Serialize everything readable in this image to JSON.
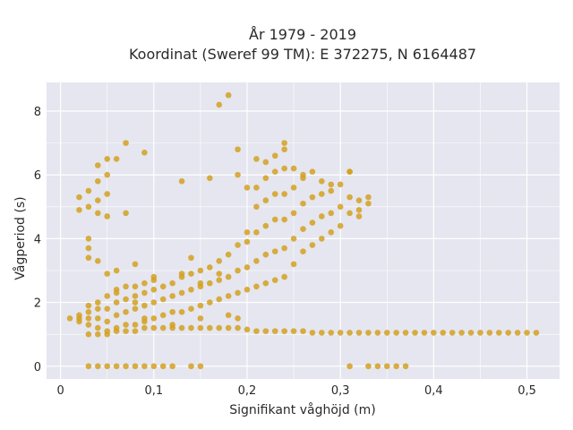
{
  "chart_data": {
    "type": "scatter",
    "title": "År 1979 - 2019",
    "subtitle": "Koordinat (Sweref 99 TM): E 372275, N 6164487",
    "xlabel": "Signifikant våghöjd (m)",
    "ylabel": "Vågperiod (s)",
    "xlim": [
      -0.015,
      0.535
    ],
    "ylim": [
      -0.4,
      8.9
    ],
    "x_ticks": [
      0,
      0.1,
      0.2,
      0.3,
      0.4,
      0.5
    ],
    "x_tick_labels": [
      "0",
      "0,1",
      "0,2",
      "0,3",
      "0,4",
      "0,5"
    ],
    "y_ticks": [
      0,
      2,
      4,
      6,
      8
    ],
    "y_tick_labels": [
      "0",
      "2",
      "4",
      "6",
      "8"
    ],
    "grid": true,
    "colors": {
      "point": "#d4a020",
      "plot_bg": "#e5e6ef",
      "grid": "#ffffff"
    },
    "series": [
      {
        "points": [
          [
            0.01,
            1.5
          ],
          [
            0.02,
            1.4
          ],
          [
            0.02,
            1.5
          ],
          [
            0.02,
            1.6
          ],
          [
            0.03,
            1.3
          ],
          [
            0.03,
            1.5
          ],
          [
            0.03,
            1.7
          ],
          [
            0.03,
            1.9
          ],
          [
            0.04,
            1.2
          ],
          [
            0.04,
            1.5
          ],
          [
            0.04,
            1.8
          ],
          [
            0.04,
            2.0
          ],
          [
            0.05,
            1.1
          ],
          [
            0.05,
            1.4
          ],
          [
            0.05,
            1.8
          ],
          [
            0.05,
            2.2
          ],
          [
            0.06,
            1.2
          ],
          [
            0.06,
            1.6
          ],
          [
            0.06,
            2.0
          ],
          [
            0.06,
            2.4
          ],
          [
            0.07,
            1.3
          ],
          [
            0.07,
            1.7
          ],
          [
            0.07,
            2.1
          ],
          [
            0.07,
            2.5
          ],
          [
            0.08,
            1.3
          ],
          [
            0.08,
            1.8
          ],
          [
            0.08,
            2.2
          ],
          [
            0.08,
            2.5
          ],
          [
            0.09,
            1.4
          ],
          [
            0.09,
            1.9
          ],
          [
            0.09,
            2.3
          ],
          [
            0.09,
            2.6
          ],
          [
            0.1,
            1.5
          ],
          [
            0.1,
            2.0
          ],
          [
            0.1,
            2.4
          ],
          [
            0.1,
            2.7
          ],
          [
            0.11,
            1.6
          ],
          [
            0.11,
            2.1
          ],
          [
            0.11,
            2.5
          ],
          [
            0.12,
            1.7
          ],
          [
            0.12,
            2.2
          ],
          [
            0.12,
            2.6
          ],
          [
            0.13,
            1.7
          ],
          [
            0.13,
            2.3
          ],
          [
            0.13,
            2.8
          ],
          [
            0.14,
            1.8
          ],
          [
            0.14,
            2.4
          ],
          [
            0.14,
            2.9
          ],
          [
            0.15,
            1.9
          ],
          [
            0.15,
            2.5
          ],
          [
            0.15,
            3.0
          ],
          [
            0.16,
            2.0
          ],
          [
            0.16,
            2.6
          ],
          [
            0.16,
            3.1
          ],
          [
            0.17,
            2.1
          ],
          [
            0.17,
            2.7
          ],
          [
            0.17,
            3.3
          ],
          [
            0.18,
            2.2
          ],
          [
            0.18,
            2.8
          ],
          [
            0.18,
            3.5
          ],
          [
            0.19,
            2.3
          ],
          [
            0.19,
            3.0
          ],
          [
            0.19,
            3.8
          ],
          [
            0.2,
            2.4
          ],
          [
            0.2,
            3.1
          ],
          [
            0.2,
            3.9
          ],
          [
            0.2,
            4.2
          ],
          [
            0.21,
            2.5
          ],
          [
            0.21,
            3.3
          ],
          [
            0.21,
            4.2
          ],
          [
            0.21,
            5.0
          ],
          [
            0.21,
            5.6
          ],
          [
            0.22,
            2.6
          ],
          [
            0.22,
            3.5
          ],
          [
            0.22,
            4.4
          ],
          [
            0.22,
            5.2
          ],
          [
            0.22,
            5.9
          ],
          [
            0.23,
            2.7
          ],
          [
            0.23,
            3.6
          ],
          [
            0.23,
            4.6
          ],
          [
            0.23,
            5.4
          ],
          [
            0.23,
            6.1
          ],
          [
            0.24,
            2.8
          ],
          [
            0.24,
            3.7
          ],
          [
            0.24,
            4.6
          ],
          [
            0.24,
            5.4
          ],
          [
            0.24,
            6.2
          ],
          [
            0.25,
            3.2
          ],
          [
            0.25,
            4.0
          ],
          [
            0.25,
            4.8
          ],
          [
            0.25,
            5.6
          ],
          [
            0.26,
            3.6
          ],
          [
            0.26,
            4.3
          ],
          [
            0.26,
            5.1
          ],
          [
            0.26,
            5.9
          ],
          [
            0.27,
            3.8
          ],
          [
            0.27,
            4.5
          ],
          [
            0.27,
            5.3
          ],
          [
            0.28,
            4.0
          ],
          [
            0.28,
            4.7
          ],
          [
            0.28,
            5.4
          ],
          [
            0.29,
            4.2
          ],
          [
            0.29,
            4.8
          ],
          [
            0.29,
            5.7
          ],
          [
            0.3,
            4.4
          ],
          [
            0.3,
            5.0
          ],
          [
            0.31,
            4.8
          ],
          [
            0.31,
            5.3
          ],
          [
            0.31,
            6.1
          ],
          [
            0.32,
            4.9
          ],
          [
            0.32,
            5.2
          ],
          [
            0.33,
            5.1
          ],
          [
            0.03,
            1.0
          ],
          [
            0.04,
            1.0
          ],
          [
            0.05,
            1.0
          ],
          [
            0.06,
            1.1
          ],
          [
            0.07,
            1.1
          ],
          [
            0.08,
            1.1
          ],
          [
            0.09,
            1.2
          ],
          [
            0.1,
            1.2
          ],
          [
            0.11,
            1.2
          ],
          [
            0.12,
            1.2
          ],
          [
            0.13,
            1.2
          ],
          [
            0.14,
            1.2
          ],
          [
            0.15,
            1.2
          ],
          [
            0.16,
            1.2
          ],
          [
            0.17,
            1.2
          ],
          [
            0.18,
            1.2
          ],
          [
            0.19,
            1.2
          ],
          [
            0.2,
            1.15
          ],
          [
            0.21,
            1.1
          ],
          [
            0.22,
            1.1
          ],
          [
            0.23,
            1.1
          ],
          [
            0.24,
            1.1
          ],
          [
            0.25,
            1.1
          ],
          [
            0.26,
            1.1
          ],
          [
            0.27,
            1.05
          ],
          [
            0.28,
            1.05
          ],
          [
            0.29,
            1.05
          ],
          [
            0.3,
            1.05
          ],
          [
            0.31,
            1.05
          ],
          [
            0.32,
            1.05
          ],
          [
            0.33,
            1.05
          ],
          [
            0.34,
            1.05
          ],
          [
            0.35,
            1.05
          ],
          [
            0.36,
            1.05
          ],
          [
            0.37,
            1.05
          ],
          [
            0.38,
            1.05
          ],
          [
            0.39,
            1.05
          ],
          [
            0.4,
            1.05
          ],
          [
            0.41,
            1.05
          ],
          [
            0.42,
            1.05
          ],
          [
            0.43,
            1.05
          ],
          [
            0.44,
            1.05
          ],
          [
            0.45,
            1.05
          ],
          [
            0.46,
            1.05
          ],
          [
            0.47,
            1.05
          ],
          [
            0.48,
            1.05
          ],
          [
            0.49,
            1.05
          ],
          [
            0.5,
            1.05
          ],
          [
            0.51,
            1.05
          ],
          [
            0.03,
            0.0
          ],
          [
            0.04,
            0.0
          ],
          [
            0.05,
            0.0
          ],
          [
            0.06,
            0.0
          ],
          [
            0.07,
            0.0
          ],
          [
            0.08,
            0.0
          ],
          [
            0.09,
            0.0
          ],
          [
            0.1,
            0.0
          ],
          [
            0.11,
            0.0
          ],
          [
            0.12,
            0.0
          ],
          [
            0.14,
            0.0
          ],
          [
            0.15,
            0.0
          ],
          [
            0.31,
            0.0
          ],
          [
            0.33,
            0.0
          ],
          [
            0.34,
            0.0
          ],
          [
            0.35,
            0.0
          ],
          [
            0.36,
            0.0
          ],
          [
            0.37,
            0.0
          ],
          [
            0.02,
            5.3
          ],
          [
            0.02,
            4.9
          ],
          [
            0.03,
            5.5
          ],
          [
            0.03,
            5.0
          ],
          [
            0.03,
            4.0
          ],
          [
            0.03,
            3.7
          ],
          [
            0.03,
            3.4
          ],
          [
            0.04,
            6.3
          ],
          [
            0.04,
            5.8
          ],
          [
            0.04,
            5.2
          ],
          [
            0.04,
            4.8
          ],
          [
            0.04,
            3.3
          ],
          [
            0.05,
            6.5
          ],
          [
            0.05,
            6.0
          ],
          [
            0.05,
            5.4
          ],
          [
            0.05,
            4.7
          ],
          [
            0.06,
            6.5
          ],
          [
            0.06,
            3.0
          ],
          [
            0.07,
            7.0
          ],
          [
            0.07,
            4.8
          ],
          [
            0.08,
            3.2
          ],
          [
            0.09,
            6.7
          ],
          [
            0.13,
            5.8
          ],
          [
            0.14,
            3.4
          ],
          [
            0.16,
            5.9
          ],
          [
            0.17,
            8.2
          ],
          [
            0.18,
            8.5
          ],
          [
            0.19,
            6.8
          ],
          [
            0.19,
            6.0
          ],
          [
            0.2,
            5.6
          ],
          [
            0.21,
            6.5
          ],
          [
            0.22,
            6.4
          ],
          [
            0.23,
            6.6
          ],
          [
            0.24,
            7.0
          ],
          [
            0.24,
            6.8
          ],
          [
            0.25,
            6.2
          ],
          [
            0.26,
            6.0
          ],
          [
            0.27,
            6.1
          ],
          [
            0.28,
            5.8
          ],
          [
            0.29,
            5.5
          ],
          [
            0.3,
            5.7
          ],
          [
            0.31,
            6.1
          ],
          [
            0.32,
            4.7
          ],
          [
            0.33,
            5.3
          ],
          [
            0.06,
            2.3
          ],
          [
            0.05,
            2.9
          ],
          [
            0.08,
            2.0
          ],
          [
            0.1,
            2.8
          ],
          [
            0.13,
            2.9
          ],
          [
            0.15,
            2.6
          ],
          [
            0.17,
            2.9
          ],
          [
            0.19,
            1.5
          ],
          [
            0.18,
            1.6
          ],
          [
            0.15,
            1.5
          ],
          [
            0.12,
            1.3
          ],
          [
            0.09,
            1.5
          ]
        ]
      }
    ]
  }
}
